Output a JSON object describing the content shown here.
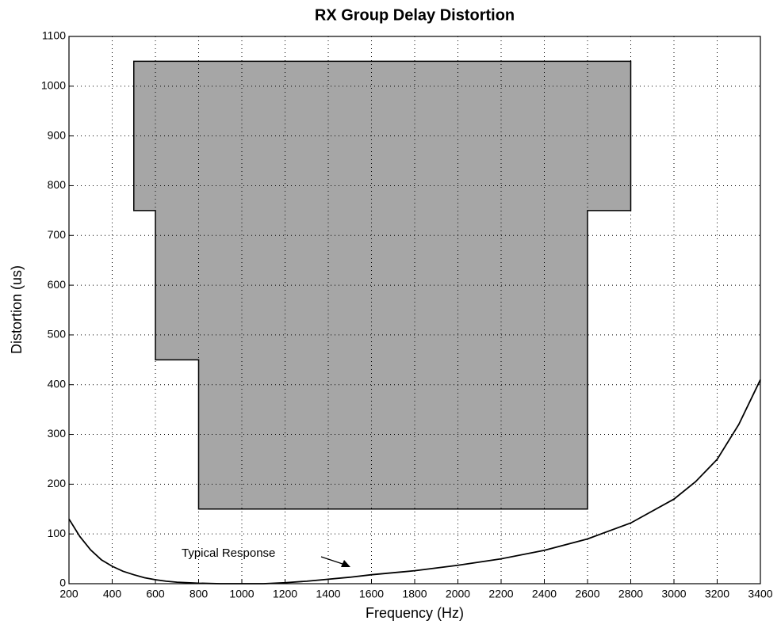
{
  "chart_data": {
    "type": "line",
    "title": "RX Group Delay Distortion",
    "x_label": "Frequency  (Hz)",
    "y_label": "Distortion (us)",
    "xlim": [
      200,
      3400
    ],
    "ylim": [
      0,
      1100
    ],
    "xticks": [
      200,
      400,
      600,
      800,
      1000,
      1200,
      1400,
      1600,
      1800,
      2000,
      2200,
      2400,
      2600,
      2800,
      3000,
      3200,
      3400
    ],
    "yticks": [
      0,
      100,
      200,
      300,
      400,
      500,
      600,
      700,
      800,
      900,
      1000,
      1100
    ],
    "grid": true,
    "series": [
      {
        "color": "#a6a6a6",
        "fill": true,
        "x": [
          500,
          2800,
          2800,
          2600,
          2600,
          800,
          800,
          600,
          600,
          500
        ],
        "values": [
          1050,
          1050,
          750,
          750,
          150,
          150,
          450,
          450,
          750,
          750
        ]
      },
      {
        "name": "Typical Response",
        "color": "#000000",
        "fill": false,
        "x": [
          200,
          250,
          300,
          350,
          400,
          450,
          500,
          550,
          600,
          650,
          700,
          750,
          800,
          900,
          1000,
          1100,
          1200,
          1300,
          1400,
          1500,
          1600,
          1800,
          2000,
          2200,
          2400,
          2600,
          2800,
          3000,
          3100,
          3200,
          3300,
          3400
        ],
        "values": [
          130,
          95,
          68,
          48,
          35,
          25,
          18,
          12,
          8,
          5,
          3,
          2,
          1,
          0,
          0,
          0,
          2,
          5,
          9,
          13,
          18,
          26,
          37,
          50,
          67,
          90,
          122,
          170,
          205,
          250,
          320,
          410
        ]
      }
    ]
  }
}
